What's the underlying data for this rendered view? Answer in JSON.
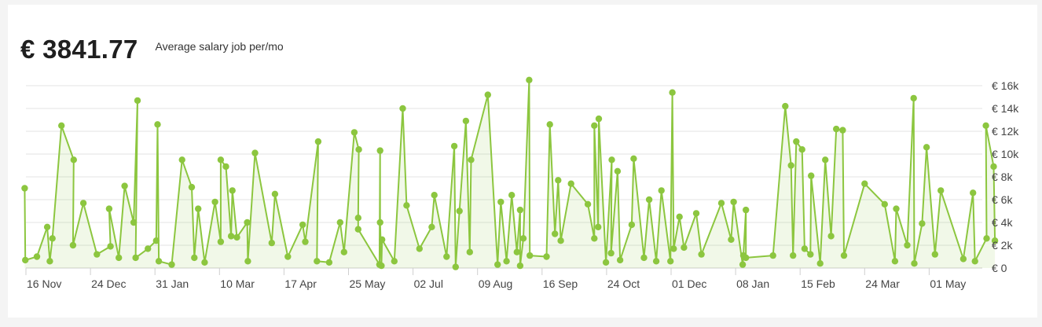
{
  "summary": {
    "average_value": "€ 3841.77",
    "average_label": "Average salary job per/mo"
  },
  "colors": {
    "line": "#8cc63f",
    "area": "rgba(140,198,63,0.12)",
    "grid": "#e3e3e3",
    "axis": "#cfcfcf"
  },
  "chart_data": {
    "type": "area",
    "title": "",
    "xlabel": "",
    "ylabel": "",
    "ylim": [
      0,
      16000
    ],
    "grid": true,
    "legend": "none",
    "y_ticks": [
      {
        "value": 0,
        "label": "€ 0"
      },
      {
        "value": 2000,
        "label": "€ 2k"
      },
      {
        "value": 4000,
        "label": "€ 4k"
      },
      {
        "value": 6000,
        "label": "€ 6k"
      },
      {
        "value": 8000,
        "label": "€ 8k"
      },
      {
        "value": 10000,
        "label": "€ 10k"
      },
      {
        "value": 12000,
        "label": "€ 12k"
      },
      {
        "value": 14000,
        "label": "€ 14k"
      },
      {
        "value": 16000,
        "label": "€ 16k"
      }
    ],
    "x_ticks": [
      "16 Nov",
      "24 Dec",
      "31 Jan",
      "10 Mar",
      "17 Apr",
      "25 May",
      "02 Jul",
      "09 Aug",
      "16 Sep",
      "24 Oct",
      "01 Dec",
      "08 Jan",
      "15 Feb",
      "24 Mar",
      "01 May"
    ],
    "x_index_range": [
      0,
      15.6
    ],
    "series": [
      {
        "values": [
          [
            -0.02,
            7000
          ],
          [
            -0.01,
            700
          ],
          [
            0.17,
            1000
          ],
          [
            0.33,
            3600
          ],
          [
            0.37,
            600
          ],
          [
            0.41,
            2600
          ],
          [
            0.55,
            12500
          ],
          [
            0.74,
            9500
          ],
          [
            0.73,
            2000
          ],
          [
            0.89,
            5700
          ],
          [
            1.1,
            1200
          ],
          [
            1.31,
            1900
          ],
          [
            1.29,
            5200
          ],
          [
            1.44,
            900
          ],
          [
            1.53,
            7200
          ],
          [
            1.67,
            4000
          ],
          [
            1.73,
            14700
          ],
          [
            1.7,
            900
          ],
          [
            1.89,
            1700
          ],
          [
            2.02,
            2400
          ],
          [
            2.04,
            12600
          ],
          [
            2.06,
            600
          ],
          [
            2.26,
            300
          ],
          [
            2.42,
            9500
          ],
          [
            2.57,
            7100
          ],
          [
            2.61,
            900
          ],
          [
            2.67,
            5200
          ],
          [
            2.77,
            500
          ],
          [
            2.93,
            5800
          ],
          [
            3.02,
            2300
          ],
          [
            3.02,
            9500
          ],
          [
            3.1,
            8900
          ],
          [
            3.18,
            2800
          ],
          [
            3.2,
            6800
          ],
          [
            3.27,
            2700
          ],
          [
            3.43,
            4000
          ],
          [
            3.44,
            600
          ],
          [
            3.55,
            10100
          ],
          [
            3.81,
            2200
          ],
          [
            3.86,
            6500
          ],
          [
            4.06,
            1000
          ],
          [
            4.29,
            3800
          ],
          [
            4.33,
            2300
          ],
          [
            4.53,
            11100
          ],
          [
            4.51,
            600
          ],
          [
            4.7,
            500
          ],
          [
            4.87,
            4000
          ],
          [
            4.93,
            1400
          ],
          [
            5.09,
            11900
          ],
          [
            5.16,
            10400
          ],
          [
            5.15,
            4400
          ],
          [
            5.15,
            3400
          ],
          [
            5.48,
            300
          ],
          [
            5.49,
            10300
          ],
          [
            5.49,
            4000
          ],
          [
            5.51,
            200
          ],
          [
            5.52,
            2500
          ],
          [
            5.71,
            600
          ],
          [
            5.84,
            14000
          ],
          [
            5.9,
            5500
          ],
          [
            6.1,
            1700
          ],
          [
            6.29,
            3600
          ],
          [
            6.33,
            6400
          ],
          [
            6.52,
            1000
          ],
          [
            6.64,
            10700
          ],
          [
            6.66,
            100
          ],
          [
            6.72,
            5000
          ],
          [
            6.82,
            12900
          ],
          [
            6.88,
            1400
          ],
          [
            6.9,
            9500
          ],
          [
            7.16,
            15200
          ],
          [
            7.31,
            300
          ],
          [
            7.36,
            5800
          ],
          [
            7.45,
            600
          ],
          [
            7.53,
            6400
          ],
          [
            7.61,
            1400
          ],
          [
            7.66,
            5100
          ],
          [
            7.66,
            200
          ],
          [
            7.71,
            2600
          ],
          [
            7.8,
            16500
          ],
          [
            7.81,
            1100
          ],
          [
            8.07,
            1000
          ],
          [
            8.12,
            12600
          ],
          [
            8.2,
            3000
          ],
          [
            8.25,
            7700
          ],
          [
            8.29,
            2400
          ],
          [
            8.45,
            7400
          ],
          [
            8.71,
            5600
          ],
          [
            8.81,
            2600
          ],
          [
            8.81,
            12500
          ],
          [
            8.87,
            3600
          ],
          [
            8.88,
            13100
          ],
          [
            8.99,
            500
          ],
          [
            9.08,
            9500
          ],
          [
            9.07,
            1300
          ],
          [
            9.17,
            8500
          ],
          [
            9.21,
            700
          ],
          [
            9.39,
            3800
          ],
          [
            9.42,
            9600
          ],
          [
            9.58,
            900
          ],
          [
            9.66,
            6000
          ],
          [
            9.77,
            600
          ],
          [
            9.85,
            6800
          ],
          [
            9.99,
            600
          ],
          [
            10.02,
            15400
          ],
          [
            10.04,
            1700
          ],
          [
            10.13,
            4500
          ],
          [
            10.2,
            1800
          ],
          [
            10.39,
            4800
          ],
          [
            10.47,
            1200
          ],
          [
            10.78,
            5700
          ],
          [
            10.93,
            2500
          ],
          [
            10.97,
            5800
          ],
          [
            11.11,
            300
          ],
          [
            11.12,
            1100
          ],
          [
            11.16,
            5100
          ],
          [
            11.16,
            900
          ],
          [
            11.58,
            1100
          ],
          [
            11.77,
            14200
          ],
          [
            11.86,
            9000
          ],
          [
            11.89,
            1100
          ],
          [
            11.94,
            11100
          ],
          [
            12.03,
            10400
          ],
          [
            12.07,
            1700
          ],
          [
            12.16,
            1200
          ],
          [
            12.17,
            8100
          ],
          [
            12.31,
            400
          ],
          [
            12.39,
            9500
          ],
          [
            12.48,
            2800
          ],
          [
            12.56,
            12200
          ],
          [
            12.66,
            12100
          ],
          [
            12.68,
            1100
          ],
          [
            13.0,
            7400
          ],
          [
            13.31,
            5600
          ],
          [
            13.47,
            600
          ],
          [
            13.49,
            5200
          ],
          [
            13.66,
            2000
          ],
          [
            13.76,
            14900
          ],
          [
            13.77,
            400
          ],
          [
            13.89,
            3900
          ],
          [
            13.96,
            10600
          ],
          [
            14.09,
            1200
          ],
          [
            14.18,
            6800
          ],
          [
            14.53,
            800
          ],
          [
            14.68,
            6600
          ],
          [
            14.71,
            600
          ],
          [
            14.89,
            2600
          ],
          [
            14.88,
            12500
          ],
          [
            15.0,
            8900
          ],
          [
            15.02,
            2400
          ]
        ]
      }
    ]
  }
}
